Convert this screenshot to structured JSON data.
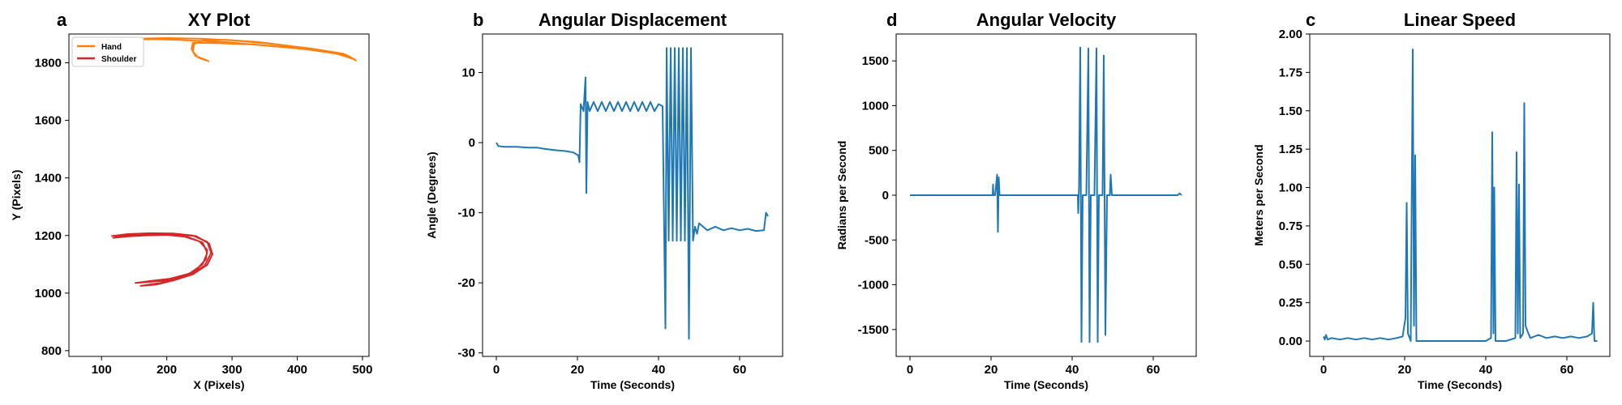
{
  "colors": {
    "blue": "#1f77b4",
    "orange": "#ff7f0e",
    "red": "#d62728"
  },
  "chart_data": [
    {
      "id": "xy",
      "type": "line",
      "panel_label": "a",
      "title": "XY Plot",
      "xlabel": "X (Pixels)",
      "ylabel": "Y (Pixels)",
      "xlim": [
        50,
        510
      ],
      "ylim": [
        780,
        1900
      ],
      "xticks": [
        100,
        200,
        300,
        400,
        500
      ],
      "yticks": [
        800,
        1000,
        1200,
        1400,
        1600,
        1800
      ],
      "legend": {
        "position": "top-left",
        "entries": [
          "Hand",
          "Shoulder"
        ]
      },
      "series": [
        {
          "name": "Hand",
          "color": "orange",
          "points": [
            [
              265,
              1805
            ],
            [
              248,
              1818
            ],
            [
              240,
              1840
            ],
            [
              242,
              1865
            ],
            [
              255,
              1878
            ],
            [
              290,
              1880
            ],
            [
              340,
              1872
            ],
            [
              390,
              1858
            ],
            [
              440,
              1842
            ],
            [
              475,
              1828
            ],
            [
              490,
              1808
            ],
            [
              480,
              1822
            ],
            [
              450,
              1838
            ],
            [
              400,
              1850
            ],
            [
              340,
              1862
            ],
            [
              290,
              1872
            ],
            [
              250,
              1876
            ],
            [
              215,
              1880
            ],
            [
              180,
              1882
            ],
            [
              140,
              1880
            ],
            [
              100,
              1876
            ],
            [
              70,
              1872
            ],
            [
              100,
              1880
            ],
            [
              150,
              1884
            ],
            [
              200,
              1886
            ],
            [
              250,
              1884
            ],
            [
              300,
              1878
            ],
            [
              360,
              1866
            ],
            [
              420,
              1850
            ],
            [
              470,
              1832
            ],
            [
              488,
              1812
            ],
            [
              460,
              1832
            ],
            [
              400,
              1852
            ],
            [
              330,
              1864
            ],
            [
              280,
              1868
            ],
            [
              240,
              1870
            ],
            [
              238,
              1848
            ],
            [
              244,
              1824
            ],
            [
              262,
              1808
            ]
          ]
        },
        {
          "name": "Shoulder",
          "color": "red",
          "points": [
            [
              115,
              1198
            ],
            [
              140,
              1205
            ],
            [
              175,
              1208
            ],
            [
              210,
              1207
            ],
            [
              240,
              1200
            ],
            [
              262,
              1178
            ],
            [
              268,
              1140
            ],
            [
              258,
              1095
            ],
            [
              232,
              1060
            ],
            [
              205,
              1045
            ],
            [
              180,
              1040
            ],
            [
              152,
              1035
            ],
            [
              175,
              1042
            ],
            [
              205,
              1050
            ],
            [
              235,
              1068
            ],
            [
              255,
              1100
            ],
            [
              262,
              1140
            ],
            [
              255,
              1175
            ],
            [
              232,
              1195
            ],
            [
              200,
              1202
            ],
            [
              165,
              1200
            ],
            [
              130,
              1196
            ],
            [
              118,
              1192
            ],
            [
              145,
              1198
            ],
            [
              180,
              1203
            ],
            [
              215,
              1205
            ],
            [
              245,
              1198
            ],
            [
              265,
              1172
            ],
            [
              270,
              1135
            ],
            [
              262,
              1098
            ],
            [
              240,
              1065
            ],
            [
              212,
              1045
            ],
            [
              185,
              1030
            ],
            [
              160,
              1025
            ],
            [
              190,
              1035
            ],
            [
              220,
              1052
            ],
            [
              245,
              1080
            ],
            [
              260,
              1118
            ],
            [
              262,
              1150
            ],
            [
              250,
              1180
            ],
            [
              225,
              1198
            ],
            [
              190,
              1205
            ],
            [
              150,
              1202
            ],
            [
              120,
              1197
            ]
          ]
        }
      ]
    },
    {
      "id": "ang",
      "type": "line",
      "panel_label": "b",
      "title": "Angular Displacement",
      "xlabel": "Time (Seconds)",
      "ylabel": "Angle (Degrees)",
      "xlim": [
        -3.4,
        70.6
      ],
      "ylim": [
        -30.5,
        15.5
      ],
      "xticks": [
        0,
        20,
        40,
        60
      ],
      "yticks": [
        -30,
        -20,
        -10,
        0,
        10
      ],
      "series": [
        {
          "name": "",
          "color": "blue",
          "points": [
            [
              0,
              0
            ],
            [
              0.5,
              -0.5
            ],
            [
              2,
              -0.6
            ],
            [
              5,
              -0.6
            ],
            [
              8,
              -0.7
            ],
            [
              10,
              -0.7
            ],
            [
              12,
              -0.9
            ],
            [
              15,
              -1.1
            ],
            [
              17,
              -1.2
            ],
            [
              19,
              -1.4
            ],
            [
              20.2,
              -1.8
            ],
            [
              20.5,
              -2.8
            ],
            [
              20.8,
              5.5
            ],
            [
              21.5,
              4.5
            ],
            [
              22,
              9.3
            ],
            [
              22.2,
              -7.2
            ],
            [
              22.5,
              5.8
            ],
            [
              23,
              4.5
            ],
            [
              24,
              5.8
            ],
            [
              25,
              4.5
            ],
            [
              26,
              5.8
            ],
            [
              27,
              4.5
            ],
            [
              28,
              5.8
            ],
            [
              29,
              4.5
            ],
            [
              30,
              5.8
            ],
            [
              31,
              4.5
            ],
            [
              32,
              5.8
            ],
            [
              33,
              4.5
            ],
            [
              34,
              5.8
            ],
            [
              35,
              4.5
            ],
            [
              36,
              5.8
            ],
            [
              37,
              4.5
            ],
            [
              38,
              5.8
            ],
            [
              39,
              4.5
            ],
            [
              40,
              5.5
            ],
            [
              41,
              5.2
            ],
            [
              41.7,
              -26.5
            ],
            [
              42,
              13.5
            ],
            [
              42.5,
              -14
            ],
            [
              43,
              13.5
            ],
            [
              43.5,
              -14
            ],
            [
              44,
              13.5
            ],
            [
              44.5,
              -14
            ],
            [
              45,
              13.5
            ],
            [
              45.5,
              -14
            ],
            [
              46,
              13.5
            ],
            [
              46.5,
              -14
            ],
            [
              47,
              13.5
            ],
            [
              47.5,
              -28
            ],
            [
              48,
              13.5
            ],
            [
              48.5,
              -14
            ],
            [
              49,
              -12
            ],
            [
              49.5,
              -13
            ],
            [
              50,
              -11.5
            ],
            [
              52,
              -12.5
            ],
            [
              54,
              -12
            ],
            [
              56,
              -12.5
            ],
            [
              58,
              -12.2
            ],
            [
              60,
              -12.5
            ],
            [
              62,
              -12.3
            ],
            [
              64,
              -12.6
            ],
            [
              66,
              -12.5
            ],
            [
              66.5,
              -10
            ],
            [
              67,
              -10.5
            ]
          ]
        }
      ]
    },
    {
      "id": "vel",
      "type": "line",
      "panel_label": "d",
      "title": "Angular Velocity",
      "xlabel": "Time (Seconds)",
      "ylabel": "Radians per Second",
      "xlim": [
        -3.4,
        70.6
      ],
      "ylim": [
        -1800,
        1800
      ],
      "xticks": [
        0,
        20,
        40,
        60
      ],
      "yticks": [
        -1500,
        -1000,
        -500,
        0,
        500,
        1000,
        1500
      ],
      "series": [
        {
          "name": "",
          "color": "blue",
          "points": [
            [
              0,
              0
            ],
            [
              5,
              0
            ],
            [
              10,
              0
            ],
            [
              15,
              0
            ],
            [
              20.4,
              0
            ],
            [
              20.5,
              120
            ],
            [
              20.6,
              0
            ],
            [
              21,
              0
            ],
            [
              21.5,
              230
            ],
            [
              21.7,
              -410
            ],
            [
              21.9,
              200
            ],
            [
              22.1,
              0
            ],
            [
              25,
              0
            ],
            [
              30,
              0
            ],
            [
              35,
              0
            ],
            [
              41.4,
              0
            ],
            [
              41.5,
              -200
            ],
            [
              41.7,
              100
            ],
            [
              42,
              1650
            ],
            [
              42.3,
              -1640
            ],
            [
              42.6,
              0
            ],
            [
              43.5,
              0
            ],
            [
              44,
              1640
            ],
            [
              44.3,
              -1640
            ],
            [
              44.6,
              0
            ],
            [
              45.5,
              0
            ],
            [
              46,
              1640
            ],
            [
              46.3,
              -1640
            ],
            [
              46.6,
              0
            ],
            [
              47.5,
              0
            ],
            [
              47.8,
              1560
            ],
            [
              48.2,
              -1560
            ],
            [
              48.6,
              0
            ],
            [
              49.3,
              0
            ],
            [
              49.5,
              230
            ],
            [
              49.8,
              0
            ],
            [
              55,
              0
            ],
            [
              60,
              0
            ],
            [
              66,
              0
            ],
            [
              66.5,
              20
            ],
            [
              67,
              0
            ]
          ]
        }
      ]
    },
    {
      "id": "lin",
      "type": "line",
      "panel_label": "c",
      "title": "Linear Speed",
      "xlabel": "Time (Seconds)",
      "ylabel": "Meters per Second",
      "xlim": [
        -3.4,
        70.6
      ],
      "ylim": [
        -0.1,
        2.0
      ],
      "xticks": [
        0,
        20,
        40,
        60
      ],
      "yticks": [
        0.0,
        0.25,
        0.5,
        0.75,
        1.0,
        1.25,
        1.5,
        1.75,
        2.0
      ],
      "series": [
        {
          "name": "",
          "color": "blue",
          "points": [
            [
              0,
              0.03
            ],
            [
              0.3,
              0.01
            ],
            [
              0.6,
              0.04
            ],
            [
              1,
              0.01
            ],
            [
              2,
              0.02
            ],
            [
              4,
              0.01
            ],
            [
              6,
              0.02
            ],
            [
              8,
              0.01
            ],
            [
              10,
              0.02
            ],
            [
              12,
              0.01
            ],
            [
              14,
              0.02
            ],
            [
              16,
              0.01
            ],
            [
              18,
              0.02
            ],
            [
              19.5,
              0.03
            ],
            [
              20.2,
              0.15
            ],
            [
              20.5,
              0.9
            ],
            [
              20.8,
              0.05
            ],
            [
              21.5,
              0.0
            ],
            [
              22,
              1.9
            ],
            [
              22.3,
              0.1
            ],
            [
              22.6,
              1.21
            ],
            [
              22.9,
              0.0
            ],
            [
              25,
              0.0
            ],
            [
              30,
              0.0
            ],
            [
              35,
              0.0
            ],
            [
              40,
              0.0
            ],
            [
              41.3,
              0.02
            ],
            [
              41.6,
              1.36
            ],
            [
              41.9,
              0.05
            ],
            [
              42.1,
              1.0
            ],
            [
              42.4,
              0.0
            ],
            [
              45,
              0.0
            ],
            [
              47.3,
              0.02
            ],
            [
              47.6,
              1.23
            ],
            [
              47.9,
              0.05
            ],
            [
              48.2,
              1.02
            ],
            [
              48.5,
              0.02
            ],
            [
              49.2,
              0.05
            ],
            [
              49.5,
              1.55
            ],
            [
              49.8,
              0.1
            ],
            [
              50.5,
              0.05
            ],
            [
              51,
              0.02
            ],
            [
              53,
              0.04
            ],
            [
              55,
              0.02
            ],
            [
              57,
              0.03
            ],
            [
              59,
              0.02
            ],
            [
              61,
              0.03
            ],
            [
              63,
              0.02
            ],
            [
              65,
              0.03
            ],
            [
              66.2,
              0.05
            ],
            [
              66.5,
              0.25
            ],
            [
              66.8,
              0.0
            ],
            [
              67.5,
              0.0
            ]
          ]
        }
      ]
    }
  ]
}
